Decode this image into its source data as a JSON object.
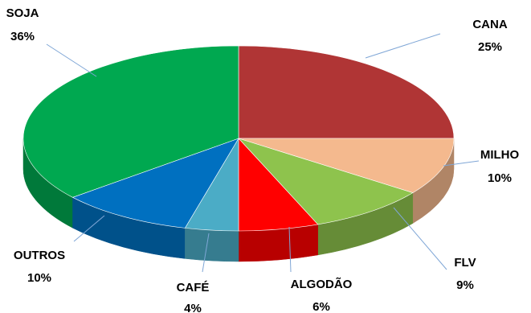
{
  "chart_data": {
    "type": "pie",
    "style": "3d",
    "slices": [
      {
        "name": "CANA",
        "value": 25,
        "label": "25%",
        "color": "#b03535"
      },
      {
        "name": "MILHO",
        "value": 10,
        "label": "10%",
        "color": "#f4b98e"
      },
      {
        "name": "FLV",
        "value": 9,
        "label": "9%",
        "color": "#8ec34d"
      },
      {
        "name": "ALGODÃO",
        "value": 6,
        "label": "6%",
        "color": "#ff0000"
      },
      {
        "name": "CAFÉ",
        "value": 4,
        "label": "4%",
        "color": "#4bacc6"
      },
      {
        "name": "OUTROS",
        "value": 10,
        "label": "10%",
        "color": "#0070c0"
      },
      {
        "name": "SOJA",
        "value": 36,
        "label": "36%",
        "color": "#00a850"
      }
    ]
  }
}
